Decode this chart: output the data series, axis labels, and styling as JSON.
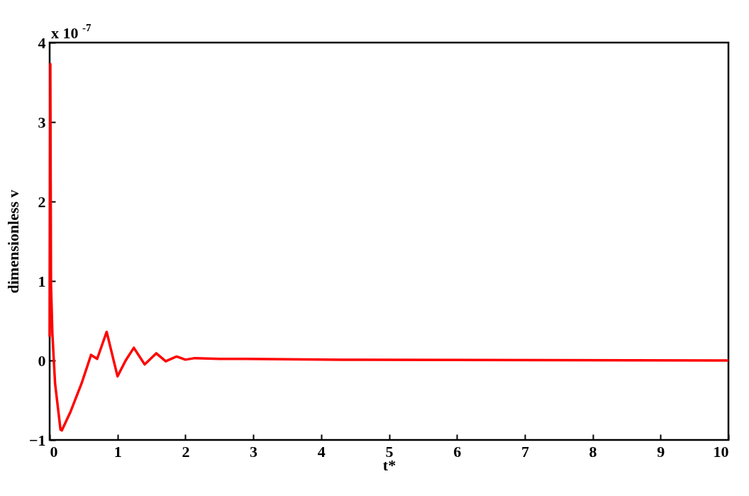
{
  "chart_data": {
    "type": "line",
    "xlabel": "t*",
    "ylabel": "dimensionless v",
    "annotations": [
      "x 10$^{-7}$"
    ],
    "x": [
      0,
      0.01,
      0.02,
      0.04,
      0.08,
      0.16,
      0.18,
      0.31,
      0.47,
      0.61,
      0.7,
      0.84,
      1.0,
      1.12,
      1.24,
      1.4,
      1.57,
      1.71,
      1.87,
      2.0,
      2.14,
      2.5,
      2.87,
      4.3,
      10
    ],
    "series": [
      {
        "color": "#ff0000",
        "values": [
          0.3,
          3.73,
          0.96,
          0.34,
          -0.29,
          -0.87,
          -0.88,
          -0.64,
          -0.29,
          0.07,
          0.02,
          0.36,
          -0.2,
          0.0,
          0.16,
          -0.05,
          0.09,
          -0.01,
          0.05,
          0.01,
          0.03,
          0.02,
          0.02,
          0.01,
          0
        ]
      }
    ],
    "xlim": [
      0,
      10
    ],
    "xticks": [
      0,
      1,
      2,
      3,
      4,
      5,
      6,
      7,
      8,
      9,
      10
    ],
    "ylim": [
      -1,
      4
    ],
    "yticks": [
      -1,
      0,
      1,
      2,
      3,
      4
    ],
    "grid": false,
    "legend": false,
    "marker": "none",
    "line_style": "solid"
  }
}
